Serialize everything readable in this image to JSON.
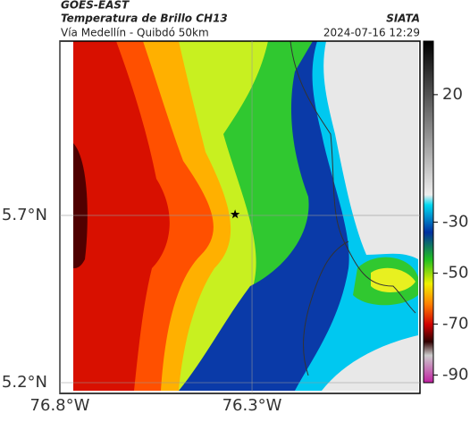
{
  "header": {
    "title": "GOES-EAST",
    "subtitle": "Temperatura de Brillo CH13",
    "region": "Vía Medellín - Quibdó 50km",
    "source": "SIATA",
    "timestamp": "2024-07-16 12:29"
  },
  "map": {
    "xlim": [
      -76.8,
      -75.863
    ],
    "ylim": [
      5.168,
      6.221
    ],
    "xticks": [
      {
        "value": -76.8,
        "label": "76.8°W"
      },
      {
        "value": -76.3,
        "label": "76.3°W"
      }
    ],
    "yticks": [
      {
        "value": 5.7,
        "label": "5.7°N"
      },
      {
        "value": 5.2,
        "label": "5.2°N"
      }
    ],
    "marker": {
      "lon": -76.344,
      "lat": 5.703
    }
  },
  "colorbar": {
    "lim": [
      -93,
      41
    ],
    "ticks": [
      20,
      -30,
      -50,
      -70,
      -90
    ]
  }
}
